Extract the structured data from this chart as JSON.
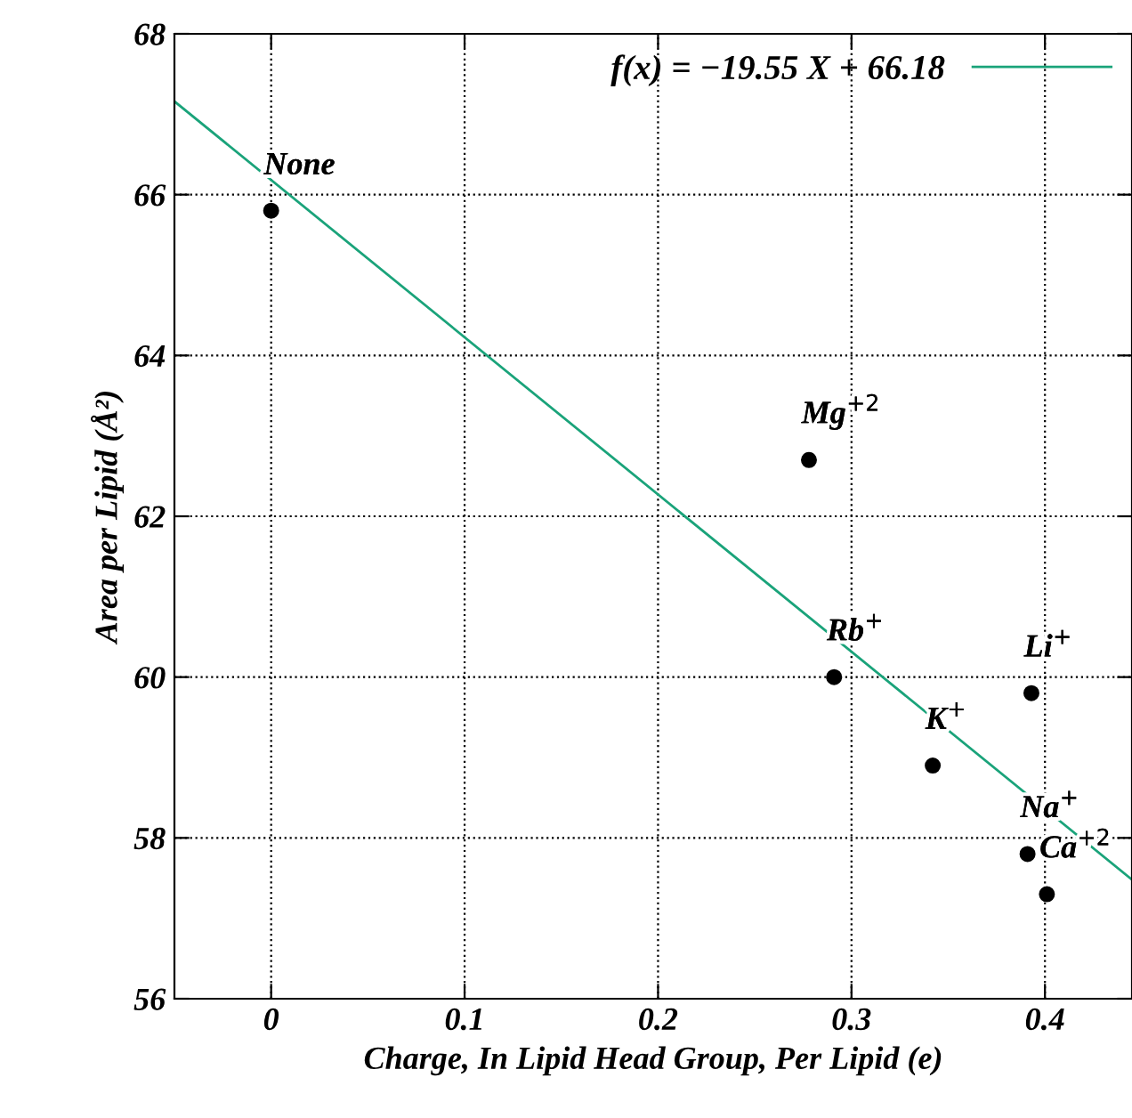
{
  "chart_data": {
    "type": "scatter",
    "xlabel": "Charge, In Lipid Head Group, Per Lipid (e)",
    "ylabel": "Area per Lipid (Å²)",
    "xlim": [
      -0.05,
      0.445
    ],
    "ylim": [
      56,
      68
    ],
    "xticks": [
      0,
      0.1,
      0.2,
      0.3,
      0.4
    ],
    "yticks": [
      56,
      58,
      60,
      62,
      64,
      66,
      68
    ],
    "grid": true,
    "legend": "top right",
    "series": [
      {
        "color": "#000000",
        "marker": "circle",
        "x": [
          0,
          0.278,
          0.291,
          0.342,
          0.393,
          0.391,
          0.401
        ],
        "values": [
          65.8,
          62.7,
          60.0,
          58.9,
          59.8,
          57.8,
          57.3
        ]
      },
      {
        "type": "line",
        "name": "f(x) = −19.55 X + 66.18",
        "color": "#1aa37a",
        "line_style": "solid",
        "x": [
          -0.05,
          0.445
        ],
        "values": [
          67.16,
          57.48
        ]
      }
    ],
    "annotations": [
      {
        "text": "None",
        "x": 0,
        "y": 65.8
      },
      {
        "text": "Mg$^{+2}$",
        "x": 0.278,
        "y": 62.7
      },
      {
        "text": "Rb$^{+}$",
        "x": 0.291,
        "y": 60.0
      },
      {
        "text": "K$^{+}$",
        "x": 0.342,
        "y": 58.9
      },
      {
        "text": "Li$^{+}$",
        "x": 0.393,
        "y": 59.8
      },
      {
        "text": "Na$^{+}$",
        "x": 0.391,
        "y": 57.8
      },
      {
        "text": "Ca$^{+2}$",
        "x": 0.401,
        "y": 57.3
      }
    ]
  }
}
